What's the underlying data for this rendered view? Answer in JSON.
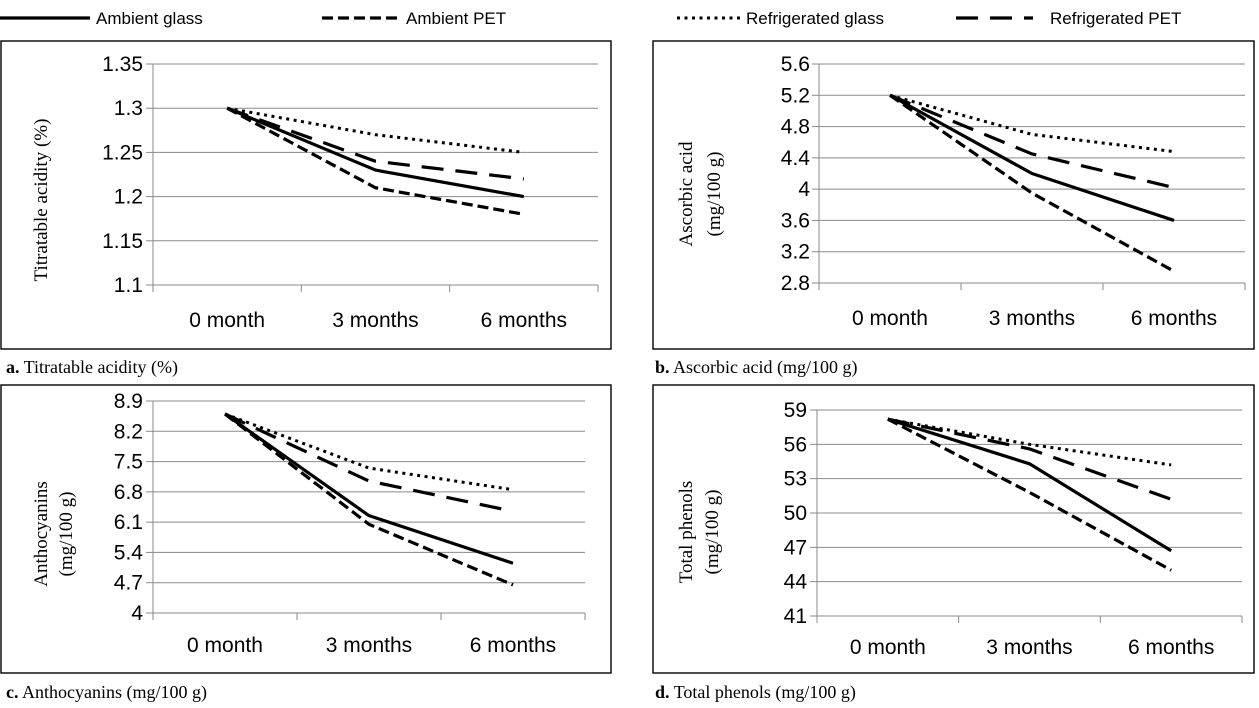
{
  "legend": [
    {
      "name": "Ambient glass",
      "style": "solid"
    },
    {
      "name": "Ambient PET",
      "style": "dashed"
    },
    {
      "name": "Refrigerated glass",
      "style": "dotted"
    },
    {
      "name": "Refrigerated PET",
      "style": "longdash"
    }
  ],
  "chart_data": [
    {
      "type": "line",
      "caption_letter": "a.",
      "caption_text": " Titratable acidity (%)",
      "ylabel": [
        "Titratable acidity (%)"
      ],
      "categories": [
        "0 month",
        "3 months",
        "6 months"
      ],
      "yticks": [
        "1.1",
        "1.15",
        "1.2",
        "1.25",
        "1.3",
        "1.35"
      ],
      "ylim": [
        1.1,
        1.35
      ],
      "series": [
        {
          "name": "Ambient glass",
          "values": [
            1.3,
            1.23,
            1.2
          ]
        },
        {
          "name": "Ambient PET",
          "values": [
            1.3,
            1.21,
            1.18
          ]
        },
        {
          "name": "Refrigerated glass",
          "values": [
            1.3,
            1.27,
            1.25
          ]
        },
        {
          "name": "Refrigerated PET",
          "values": [
            1.3,
            1.24,
            1.22
          ]
        }
      ]
    },
    {
      "type": "line",
      "caption_letter": "b.",
      "caption_text": " Ascorbic acid (mg/100 g)",
      "ylabel": [
        "Ascorbic acid",
        "(mg/100 g)"
      ],
      "categories": [
        "0 month",
        "3 months",
        "6 months"
      ],
      "yticks": [
        "2.8",
        "3.2",
        "3.6",
        "4",
        "4.4",
        "4.8",
        "5.2",
        "5.6"
      ],
      "ylim": [
        2.8,
        5.6
      ],
      "series": [
        {
          "name": "Ambient glass",
          "values": [
            5.2,
            4.2,
            3.6
          ]
        },
        {
          "name": "Ambient PET",
          "values": [
            5.2,
            3.95,
            2.95
          ]
        },
        {
          "name": "Refrigerated glass",
          "values": [
            5.2,
            4.7,
            4.48
          ]
        },
        {
          "name": "Refrigerated PET",
          "values": [
            5.2,
            4.45,
            4.02
          ]
        }
      ]
    },
    {
      "type": "line",
      "caption_letter": "c.",
      "caption_text": " Anthocyanins (mg/100 g)",
      "ylabel": [
        "Anthocyanins",
        "(mg/100 g)"
      ],
      "categories": [
        "0 month",
        "3 months",
        "6 months"
      ],
      "yticks": [
        "4",
        "4.7",
        "5.4",
        "6.1",
        "6.8",
        "7.5",
        "8.2",
        "8.9"
      ],
      "ylim": [
        4,
        8.9
      ],
      "series": [
        {
          "name": "Ambient glass",
          "values": [
            8.6,
            6.25,
            5.15
          ]
        },
        {
          "name": "Ambient PET",
          "values": [
            8.6,
            6.05,
            4.65
          ]
        },
        {
          "name": "Refrigerated glass",
          "values": [
            8.6,
            7.35,
            6.85
          ]
        },
        {
          "name": "Refrigerated PET",
          "values": [
            8.6,
            7.05,
            6.35
          ]
        }
      ]
    },
    {
      "type": "line",
      "caption_letter": "d.",
      "caption_text": " Total phenols (mg/100 g)",
      "ylabel": [
        "Total phenols",
        "(mg/100 g)"
      ],
      "categories": [
        "0 month",
        "3 months",
        "6 months"
      ],
      "yticks": [
        "41",
        "44",
        "47",
        "50",
        "53",
        "56",
        "59"
      ],
      "ylim": [
        41,
        59
      ],
      "series": [
        {
          "name": "Ambient glass",
          "values": [
            58.2,
            54.3,
            46.7
          ]
        },
        {
          "name": "Ambient PET",
          "values": [
            58.2,
            51.8,
            45.0
          ]
        },
        {
          "name": "Refrigerated glass",
          "values": [
            58.2,
            56.0,
            54.2
          ]
        },
        {
          "name": "Refrigerated PET",
          "values": [
            58.2,
            55.6,
            51.2
          ]
        }
      ]
    }
  ]
}
